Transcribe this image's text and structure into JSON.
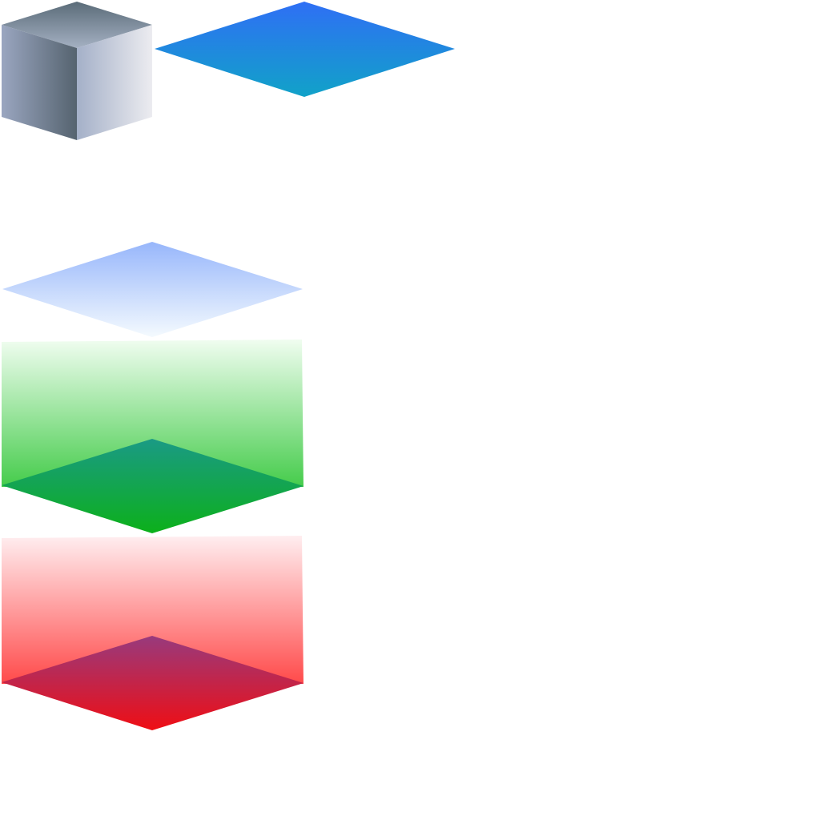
{
  "canvas": {
    "background": "#ffffff"
  },
  "shapes": [
    {
      "name": "gray-cube-icon",
      "kind": "cube",
      "colors": {
        "top": [
          "#5a6b78",
          "#a4b0c2"
        ],
        "left": [
          "#9aa6c0",
          "#55636f"
        ],
        "right": [
          "#a4b0c8",
          "#ececf0"
        ]
      }
    },
    {
      "name": "blue-diamond",
      "kind": "diamond",
      "colors": [
        "#2f6ff5",
        "#11a2c8"
      ]
    },
    {
      "name": "light-blue-diamond",
      "kind": "diamond",
      "colors": [
        "#97b6fb",
        "#f4fafe"
      ]
    },
    {
      "name": "green-layer",
      "kind": "layer",
      "colors": {
        "panel": [
          "#f0fdf0",
          "#45cc4b"
        ],
        "base": [
          "#1a9a85",
          "#0cb01a"
        ]
      }
    },
    {
      "name": "red-layer",
      "kind": "layer",
      "colors": {
        "panel": [
          "#ffeef0",
          "#ff4a4a"
        ],
        "base": [
          "#983a7d",
          "#ef0e14"
        ]
      }
    }
  ]
}
